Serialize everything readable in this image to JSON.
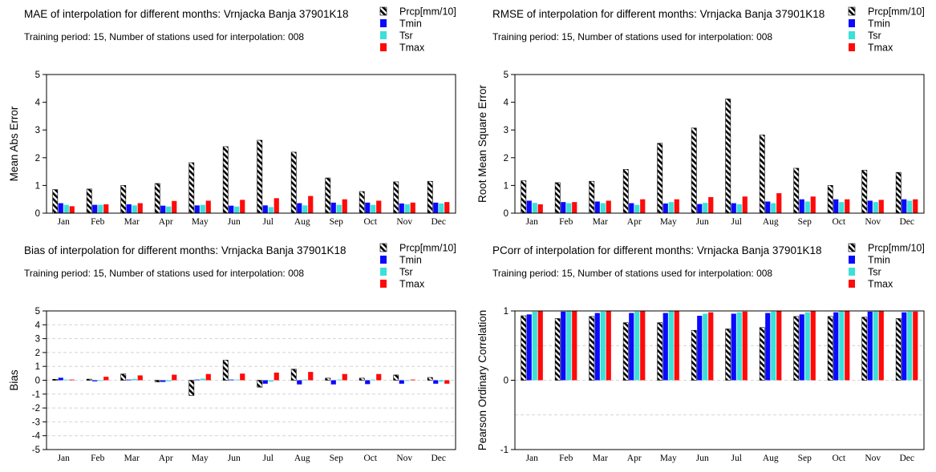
{
  "colors": {
    "tmin": "#0a0aff",
    "tsr": "#3be0d8",
    "tmax": "#ff0a0a",
    "prcp_hatch": "#000000",
    "grid": "#d4d4d4"
  },
  "chart_data": [
    {
      "type": "bar",
      "title": "MAE of interpolation for different months: Vrnjacka Banja  37901K18",
      "subtitle": "Training period: 15, Number of stations used for interpolation: 008",
      "ylabel": "Mean Abs Error",
      "ylim": [
        0,
        5
      ],
      "yticks": [
        "0",
        "1",
        "2",
        "3",
        "4",
        "5"
      ],
      "ytick_values": [
        0,
        1,
        2,
        3,
        4,
        5
      ],
      "grid": false,
      "legend_position": "top-right-outside",
      "categories": [
        "Jan",
        "Feb",
        "Mar",
        "Apr",
        "May",
        "Jun",
        "Jul",
        "Aug",
        "Sep",
        "Oct",
        "Nov",
        "Dec"
      ],
      "series": [
        {
          "name": "Prcp[mm/10]",
          "values": [
            0.85,
            0.87,
            1.0,
            1.07,
            1.82,
            2.4,
            2.63,
            2.2,
            1.27,
            0.78,
            1.13,
            1.15
          ]
        },
        {
          "name": "Tmin",
          "values": [
            0.36,
            0.3,
            0.32,
            0.27,
            0.28,
            0.27,
            0.28,
            0.36,
            0.38,
            0.38,
            0.35,
            0.38
          ]
        },
        {
          "name": "Tsr",
          "values": [
            0.3,
            0.3,
            0.28,
            0.24,
            0.3,
            0.24,
            0.22,
            0.28,
            0.3,
            0.3,
            0.32,
            0.35
          ]
        },
        {
          "name": "Tmax",
          "values": [
            0.25,
            0.32,
            0.36,
            0.44,
            0.45,
            0.48,
            0.54,
            0.62,
            0.5,
            0.45,
            0.38,
            0.4
          ]
        }
      ]
    },
    {
      "type": "bar",
      "title": "RMSE of interpolation for different months: Vrnjacka Banja  37901K18",
      "subtitle": "Training period: 15, Number of stations used for interpolation: 008",
      "ylabel": "Root Mean Square Error",
      "ylim": [
        0,
        5
      ],
      "yticks": [
        "0",
        "1",
        "2",
        "3",
        "4",
        "5"
      ],
      "ytick_values": [
        0,
        1,
        2,
        3,
        4,
        5
      ],
      "grid": false,
      "legend_position": "top-right-outside",
      "categories": [
        "Jan",
        "Feb",
        "Mar",
        "Apr",
        "May",
        "Jun",
        "Jul",
        "Aug",
        "Sep",
        "Oct",
        "Nov",
        "Dec"
      ],
      "series": [
        {
          "name": "Prcp[mm/10]",
          "values": [
            1.17,
            1.1,
            1.15,
            1.58,
            2.52,
            3.07,
            4.12,
            2.82,
            1.62,
            1.0,
            1.55,
            1.47
          ]
        },
        {
          "name": "Tmin",
          "values": [
            0.45,
            0.4,
            0.42,
            0.36,
            0.35,
            0.33,
            0.36,
            0.42,
            0.5,
            0.5,
            0.45,
            0.5
          ]
        },
        {
          "name": "Tsr",
          "values": [
            0.37,
            0.36,
            0.36,
            0.3,
            0.4,
            0.37,
            0.32,
            0.36,
            0.42,
            0.4,
            0.4,
            0.45
          ]
        },
        {
          "name": "Tmax",
          "values": [
            0.32,
            0.4,
            0.45,
            0.5,
            0.5,
            0.58,
            0.6,
            0.72,
            0.6,
            0.5,
            0.48,
            0.5
          ]
        }
      ]
    },
    {
      "type": "bar",
      "title": "Bias of interpolation for different months: Vrnjacka Banja  37901K18",
      "subtitle": "Training period: 15, Number of stations used for interpolation: 008",
      "ylabel": "Bias",
      "ylim": [
        -5,
        5
      ],
      "yticks": [
        "-5",
        "-4",
        "-3",
        "-2",
        "-1",
        "0",
        "1",
        "2",
        "3",
        "4",
        "5"
      ],
      "ytick_values": [
        -5,
        -4,
        -3,
        -2,
        -1,
        0,
        1,
        2,
        3,
        4,
        5
      ],
      "grid": true,
      "legend_position": "top-right-outside",
      "categories": [
        "Jan",
        "Feb",
        "Mar",
        "Apr",
        "May",
        "Jun",
        "Jul",
        "Aug",
        "Sep",
        "Oct",
        "Nov",
        "Dec"
      ],
      "series": [
        {
          "name": "Prcp[mm/10]",
          "values": [
            0.07,
            0.08,
            0.45,
            -0.12,
            -1.1,
            1.45,
            -0.5,
            0.8,
            0.15,
            0.15,
            0.38,
            0.2
          ]
        },
        {
          "name": "Tmin",
          "values": [
            0.18,
            -0.08,
            0.05,
            -0.12,
            0.05,
            0.05,
            -0.25,
            -0.3,
            -0.3,
            -0.28,
            -0.25,
            -0.25
          ]
        },
        {
          "name": "Tsr",
          "values": [
            0.05,
            -0.05,
            0.1,
            -0.08,
            0.12,
            0.05,
            -0.1,
            0.05,
            0.05,
            0.05,
            -0.05,
            -0.1
          ]
        },
        {
          "name": "Tmax",
          "values": [
            0.05,
            0.25,
            0.35,
            0.4,
            0.45,
            0.48,
            0.55,
            0.6,
            0.45,
            0.45,
            0.05,
            -0.25
          ]
        }
      ]
    },
    {
      "type": "bar",
      "title": "PCorr of interpolation for different months: Vrnjacka Banja  37901K18",
      "subtitle": "Training period: 15, Number of stations used for interpolation: 008",
      "ylabel": "Pearson Ordinary Correlation",
      "ylim": [
        -1,
        1
      ],
      "yticks": [
        "-1",
        "0",
        "1"
      ],
      "ytick_values": [
        -1,
        0,
        1
      ],
      "grid": true,
      "grid_step": 0.5,
      "legend_position": "top-right-outside",
      "categories": [
        "Jan",
        "Feb",
        "Mar",
        "Apr",
        "May",
        "Jun",
        "Jul",
        "Aug",
        "Sep",
        "Oct",
        "Nov",
        "Dec"
      ],
      "series": [
        {
          "name": "Prcp[mm/10]",
          "values": [
            0.93,
            0.89,
            0.92,
            0.83,
            0.83,
            0.72,
            0.74,
            0.76,
            0.92,
            0.92,
            0.91,
            0.89
          ]
        },
        {
          "name": "Tmin",
          "values": [
            0.95,
            0.99,
            0.97,
            0.97,
            0.97,
            0.93,
            0.96,
            0.97,
            0.95,
            0.98,
            0.99,
            0.98
          ]
        },
        {
          "name": "Tsr",
          "values": [
            0.99,
            1.0,
            0.99,
            0.99,
            1.0,
            0.96,
            0.98,
            0.99,
            0.98,
            1.0,
            1.0,
            0.99
          ]
        },
        {
          "name": "Tmax",
          "values": [
            1.0,
            1.0,
            1.0,
            1.0,
            1.0,
            0.98,
            0.99,
            1.0,
            1.0,
            1.0,
            1.0,
            0.99
          ]
        }
      ]
    }
  ]
}
